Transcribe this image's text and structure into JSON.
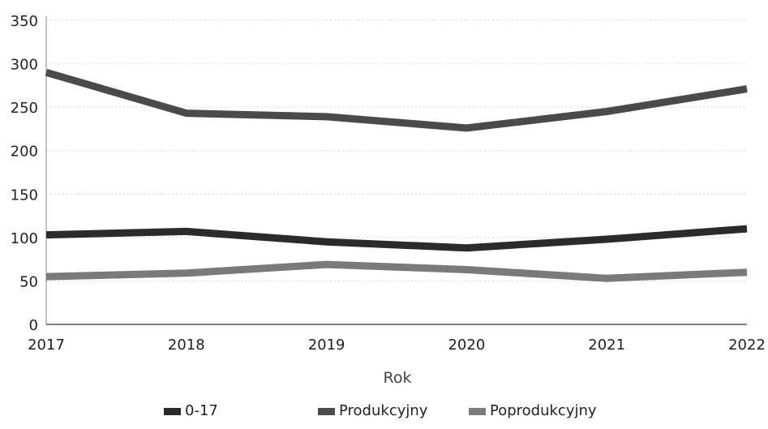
{
  "chart_data": {
    "type": "line",
    "title": "",
    "xlabel": "Rok",
    "ylabel": "",
    "x": [
      "2017",
      "2018",
      "2019",
      "2020",
      "2021",
      "2022"
    ],
    "ylim": [
      0,
      350
    ],
    "yticks": [
      "0",
      "50",
      "100",
      "150",
      "200",
      "250",
      "300",
      "350"
    ],
    "grid": true,
    "legend_position": "bottom",
    "series": [
      {
        "name": "0-17",
        "color": "#2b2b2b",
        "values": [
          103,
          107,
          95,
          88,
          98,
          110
        ]
      },
      {
        "name": "Produkcyjny",
        "color": "#4a4a4a",
        "values": [
          290,
          243,
          239,
          226,
          245,
          271
        ]
      },
      {
        "name": "Poprodukcyjny",
        "color": "#7a7a7a",
        "values": [
          55,
          59,
          69,
          63,
          53,
          60
        ]
      }
    ]
  }
}
